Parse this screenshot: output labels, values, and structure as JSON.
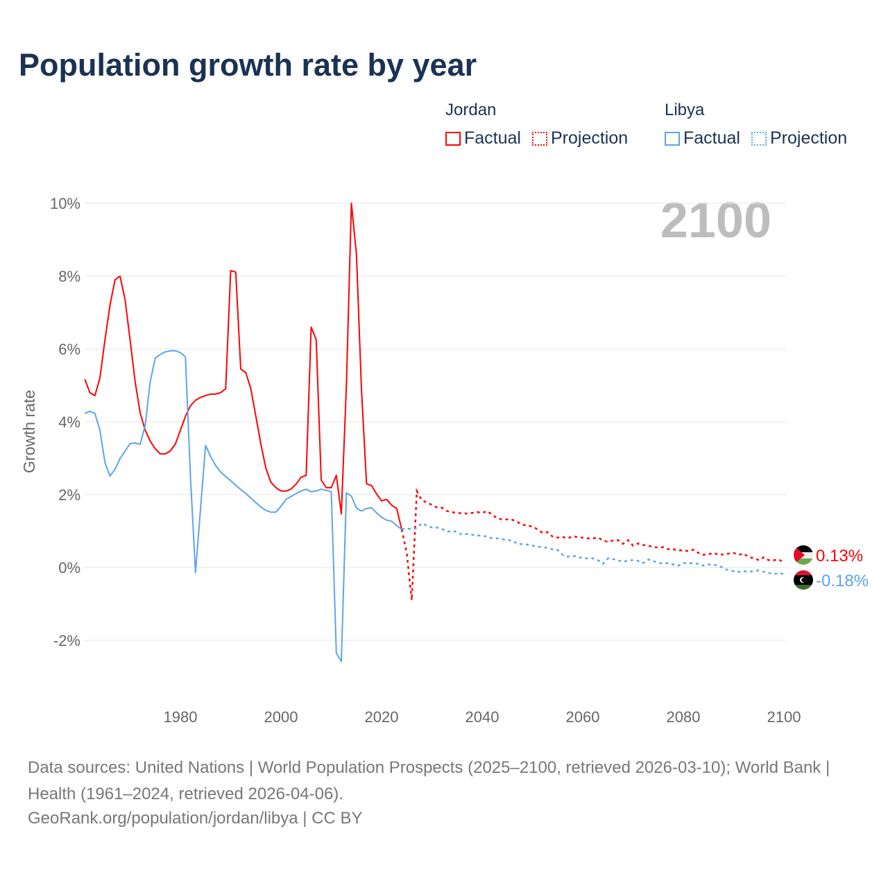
{
  "title": "Population growth rate by year",
  "legend": {
    "groups": [
      {
        "name": "Jordan",
        "factual": "Factual",
        "projection": "Projection",
        "color": "#ff0000"
      },
      {
        "name": "Libya",
        "factual": "Factual",
        "projection": "Projection",
        "color": "#5ba4ec"
      }
    ]
  },
  "year_watermark": "2100",
  "footer": {
    "sources": "Data sources: United Nations | World Population Prospects (2025–2100, retrieved 2026-03-10); World Bank | Health (1961–2024, retrieved 2026-04-06).",
    "credit": "GeoRank.org/population/jordan/libya | CC BY"
  },
  "chart_data": {
    "type": "line",
    "title": "Population growth rate by year",
    "xlabel": "",
    "ylabel": "Growth rate",
    "xlim": [
      1961,
      2100
    ],
    "ylim": [
      -3.6,
      10
    ],
    "x_ticks": [
      "1980",
      "2000",
      "2020",
      "2040",
      "2060",
      "2080",
      "2100"
    ],
    "y_ticks": [
      {
        "v": 10,
        "label": "10%"
      },
      {
        "v": 8,
        "label": "8%"
      },
      {
        "v": 6,
        "label": "6%"
      },
      {
        "v": 4,
        "label": "4%"
      },
      {
        "v": 2,
        "label": "2%"
      },
      {
        "v": 0,
        "label": "0%"
      },
      {
        "v": -2,
        "label": "-2%"
      }
    ],
    "grid": true,
    "series": [
      {
        "name": "Jordan",
        "color": "#ff0000",
        "end_label": "0.13%",
        "factual_start": 1961,
        "factual": [
          5.17,
          4.8,
          4.72,
          5.2,
          6.25,
          7.2,
          7.9,
          8.0,
          7.35,
          6.25,
          5.1,
          4.25,
          3.77,
          3.47,
          3.26,
          3.12,
          3.12,
          3.2,
          3.39,
          3.77,
          4.15,
          4.44,
          4.59,
          4.67,
          4.72,
          4.76,
          4.76,
          4.8,
          4.91,
          8.15,
          8.11,
          5.45,
          5.35,
          4.91,
          4.15,
          3.39,
          2.72,
          2.34,
          2.19,
          2.1,
          2.1,
          2.15,
          2.29,
          2.48,
          2.53,
          6.6,
          6.25,
          2.4,
          2.19,
          2.19,
          2.53,
          1.47,
          5.0,
          10.0,
          8.6,
          4.9,
          2.3,
          2.25,
          2.02,
          1.83,
          1.87,
          1.71,
          1.62,
          1.05
        ],
        "projection_start": 2025,
        "projection": [
          0.4,
          -0.9,
          2.1,
          1.85,
          1.78,
          1.72,
          1.65,
          1.64,
          1.55,
          1.52,
          1.5,
          1.49,
          1.48,
          1.5,
          1.52,
          1.5,
          1.55,
          1.45,
          1.35,
          1.32,
          1.32,
          1.31,
          1.25,
          1.17,
          1.16,
          1.12,
          1.05,
          0.95,
          0.97,
          0.85,
          0.82,
          0.84,
          0.8,
          0.86,
          0.83,
          0.82,
          0.8,
          0.8,
          0.82,
          0.75,
          0.7,
          0.74,
          0.75,
          0.65,
          0.75,
          0.6,
          0.66,
          0.62,
          0.6,
          0.56,
          0.55,
          0.56,
          0.5,
          0.5,
          0.47,
          0.47,
          0.45,
          0.49,
          0.4,
          0.35,
          0.36,
          0.4,
          0.35,
          0.36,
          0.38,
          0.4,
          0.35,
          0.38,
          0.28,
          0.26,
          0.2,
          0.28,
          0.2,
          0.2,
          0.22,
          0.13
        ]
      },
      {
        "name": "Libya",
        "color": "#5ba4ec",
        "end_label": "-0.18%",
        "factual_start": 1961,
        "factual": [
          4.23,
          4.29,
          4.23,
          3.77,
          2.88,
          2.51,
          2.7,
          2.99,
          3.2,
          3.4,
          3.42,
          3.38,
          3.9,
          5.1,
          5.75,
          5.85,
          5.92,
          5.95,
          5.95,
          5.9,
          5.78,
          2.5,
          -0.14,
          1.6,
          3.35,
          3.05,
          2.8,
          2.62,
          2.5,
          2.38,
          2.26,
          2.14,
          2.03,
          1.91,
          1.78,
          1.66,
          1.57,
          1.52,
          1.52,
          1.68,
          1.87,
          1.95,
          2.03,
          2.1,
          2.15,
          2.08,
          2.1,
          2.15,
          2.12,
          2.08,
          -2.35,
          -2.58,
          2.05,
          1.96,
          1.63,
          1.55,
          1.62,
          1.64,
          1.5,
          1.38,
          1.3,
          1.27,
          1.15,
          1.05
        ],
        "projection_start": 2025,
        "projection": [
          1.07,
          1.05,
          1.08,
          1.22,
          1.15,
          1.1,
          1.1,
          1.06,
          0.98,
          1.0,
          0.98,
          0.9,
          0.92,
          0.9,
          0.88,
          0.87,
          0.85,
          0.8,
          0.8,
          0.78,
          0.75,
          0.74,
          0.65,
          0.64,
          0.63,
          0.6,
          0.58,
          0.55,
          0.54,
          0.5,
          0.48,
          0.35,
          0.3,
          0.32,
          0.3,
          0.25,
          0.25,
          0.25,
          0.2,
          0.1,
          0.25,
          0.23,
          0.2,
          0.15,
          0.2,
          0.2,
          0.18,
          0.12,
          0.22,
          0.18,
          0.12,
          0.12,
          0.12,
          0.08,
          0.05,
          0.12,
          0.12,
          0.12,
          0.1,
          0.05,
          0.08,
          0.08,
          0.05,
          -0.02,
          -0.08,
          -0.1,
          -0.12,
          -0.1,
          -0.12,
          -0.1,
          -0.08,
          -0.12,
          -0.15,
          -0.18,
          -0.15,
          -0.18
        ]
      }
    ]
  }
}
